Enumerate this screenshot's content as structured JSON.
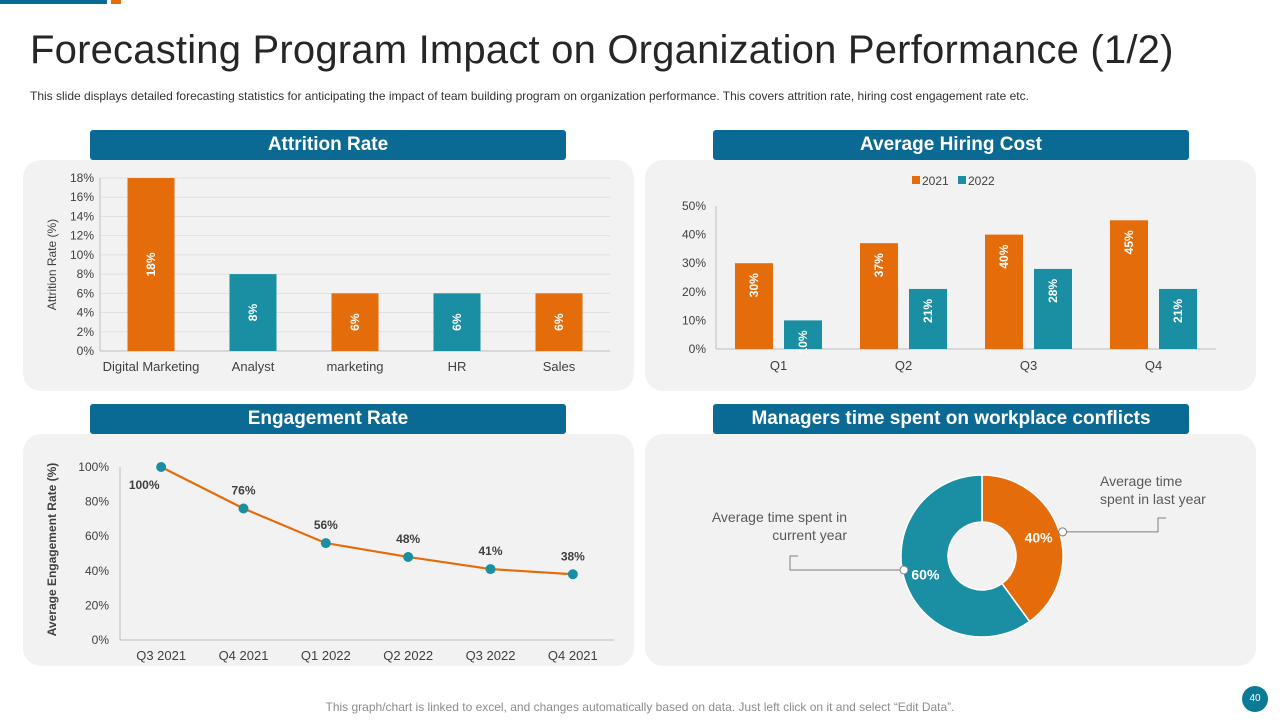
{
  "slide": {
    "title": "Forecasting Program Impact on Organization Performance (1/2)",
    "subtitle": "This slide displays detailed forecasting  statistics for anticipating the impact of team building program  on organization  performance.  This covers  attrition rate, hiring cost engagement rate etc.",
    "footer": "This graph/chart is linked to excel, and changes automatically based on data. Just left click on it and select “Edit Data”.",
    "page_number": "40"
  },
  "colors": {
    "orange": "#e46c0a",
    "teal": "#1a8ea3",
    "header_blue": "#0b6a93"
  },
  "chart_data": [
    {
      "type": "bar",
      "title": "Attrition Rate",
      "ylabel": "Attrition  Rate (%)",
      "xlabel": "",
      "categories": [
        "Digital Marketing",
        "Analyst",
        "marketing",
        "HR",
        "Sales"
      ],
      "values": [
        18,
        8,
        6,
        6,
        6
      ],
      "data_labels": [
        "18%",
        "8%",
        "6%",
        "6%",
        "6%"
      ],
      "bar_colors": [
        "#e46c0a",
        "#1a8ea3",
        "#e46c0a",
        "#1a8ea3",
        "#e46c0a"
      ],
      "ylim": [
        0,
        18
      ],
      "yticks": [
        "0%",
        "2%",
        "4%",
        "6%",
        "8%",
        "10%",
        "12%",
        "14%",
        "16%",
        "18%"
      ]
    },
    {
      "type": "bar",
      "title": "Average Hiring Cost",
      "categories": [
        "Q1",
        "Q2",
        "Q3",
        "Q4"
      ],
      "series": [
        {
          "name": "2021",
          "values": [
            30,
            37,
            40,
            45
          ],
          "labels": [
            "30%",
            "37%",
            "40%",
            "45%"
          ],
          "color": "#e46c0a"
        },
        {
          "name": "2022",
          "values": [
            10,
            21,
            28,
            21
          ],
          "labels": [
            "10%",
            "21%",
            "28%",
            "21%"
          ],
          "color": "#1a8ea3"
        }
      ],
      "ylim": [
        0,
        50
      ],
      "yticks": [
        "0%",
        "10%",
        "20%",
        "30%",
        "40%",
        "50%"
      ],
      "legend": "top-center"
    },
    {
      "type": "line",
      "title": "Engagement  Rate",
      "ylabel": "Average Engagement Rate (%)",
      "categories": [
        "Q3 2021",
        "Q4 2021",
        "Q1 2022",
        "Q2 2022",
        "Q3 2022",
        "Q4 2021"
      ],
      "values": [
        100,
        76,
        56,
        48,
        41,
        38
      ],
      "data_labels": [
        "100%",
        "76%",
        "56%",
        "48%",
        "41%",
        "38%"
      ],
      "ylim": [
        0,
        100
      ],
      "yticks": [
        "0%",
        "20%",
        "40%",
        "60%",
        "80%",
        "100%"
      ],
      "line_color": "#e46c0a",
      "marker_color": "#1a8ea3"
    },
    {
      "type": "pie",
      "title": "Managers time spent on workplace conflicts",
      "slices": [
        {
          "name": "Average time spent in last year",
          "value": 40,
          "label": "40%",
          "color": "#e46c0a"
        },
        {
          "name": "Average time spent in current year",
          "value": 60,
          "label": "60%",
          "color": "#1a8ea3"
        }
      ],
      "annotations": {
        "last_year": [
          "Average time",
          "spent in last year"
        ],
        "current_year": [
          "Average  time spent in",
          "current year"
        ]
      }
    }
  ]
}
